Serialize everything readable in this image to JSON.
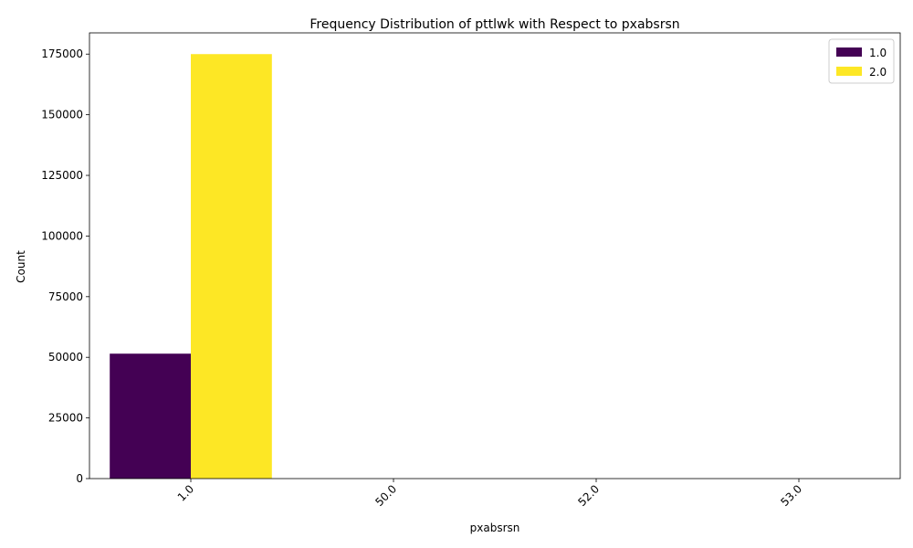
{
  "chart_data": {
    "type": "bar",
    "title": "Frequency Distribution of pttlwk with Respect to pxabsrsn",
    "xlabel": "pxabsrsn",
    "ylabel": "Count",
    "categories": [
      "1.0",
      "50.0",
      "52.0",
      "53.0"
    ],
    "series": [
      {
        "name": "1.0",
        "color": "#440154",
        "values": [
          51500,
          0,
          0,
          0
        ]
      },
      {
        "name": "2.0",
        "color": "#fde725",
        "values": [
          175000,
          0,
          0,
          0
        ]
      }
    ],
    "ylim": [
      0,
      183750
    ],
    "yticks": [
      0,
      25000,
      50000,
      75000,
      100000,
      125000,
      150000,
      175000
    ],
    "ytick_labels": [
      "0",
      "25000",
      "50000",
      "75000",
      "100000",
      "125000",
      "150000",
      "175000"
    ],
    "grid": false,
    "legend_position": "top-right"
  }
}
